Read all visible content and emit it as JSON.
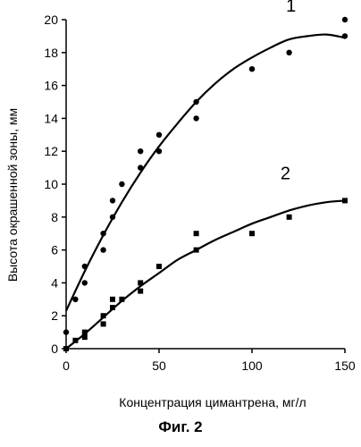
{
  "caption": "Фиг. 2",
  "chart_data": {
    "type": "scatter",
    "xlabel": "Концентрация цимантрена, мг/л",
    "ylabel": "Высота окрашенной зоны, мм",
    "xlim": [
      0,
      150
    ],
    "ylim": [
      0,
      20
    ],
    "x_ticks": [
      0,
      50,
      100,
      150
    ],
    "y_ticks": [
      0,
      2,
      4,
      6,
      8,
      10,
      12,
      14,
      16,
      18,
      20
    ],
    "grid": false,
    "series": [
      {
        "name": "1",
        "marker": "circle",
        "points": [
          [
            0,
            1
          ],
          [
            5,
            3
          ],
          [
            10,
            4
          ],
          [
            10,
            5
          ],
          [
            20,
            6
          ],
          [
            20,
            7
          ],
          [
            25,
            8
          ],
          [
            25,
            9
          ],
          [
            30,
            10
          ],
          [
            40,
            11
          ],
          [
            40,
            12
          ],
          [
            50,
            12
          ],
          [
            50,
            13
          ],
          [
            70,
            14
          ],
          [
            70,
            15
          ],
          [
            100,
            17
          ],
          [
            120,
            18
          ],
          [
            150,
            19
          ],
          [
            150,
            20
          ]
        ],
        "trend": [
          [
            0,
            2.3
          ],
          [
            10,
            4.7
          ],
          [
            20,
            6.9
          ],
          [
            30,
            8.9
          ],
          [
            40,
            10.7
          ],
          [
            50,
            12.3
          ],
          [
            60,
            13.7
          ],
          [
            70,
            15.0
          ],
          [
            80,
            16.1
          ],
          [
            90,
            17.0
          ],
          [
            100,
            17.7
          ],
          [
            110,
            18.3
          ],
          [
            120,
            18.8
          ],
          [
            130,
            19.0
          ],
          [
            140,
            19.1
          ],
          [
            150,
            18.9
          ]
        ]
      },
      {
        "name": "2",
        "marker": "square",
        "points": [
          [
            0,
            0
          ],
          [
            5,
            0.5
          ],
          [
            10,
            1
          ],
          [
            10,
            0.7
          ],
          [
            20,
            1.5
          ],
          [
            20,
            2
          ],
          [
            25,
            2.5
          ],
          [
            25,
            3
          ],
          [
            30,
            3
          ],
          [
            40,
            3.5
          ],
          [
            40,
            4
          ],
          [
            50,
            5
          ],
          [
            70,
            6
          ],
          [
            70,
            7
          ],
          [
            100,
            7
          ],
          [
            120,
            8
          ],
          [
            150,
            9
          ]
        ],
        "trend": [
          [
            0,
            0
          ],
          [
            10,
            0.9
          ],
          [
            20,
            1.9
          ],
          [
            30,
            2.9
          ],
          [
            40,
            3.8
          ],
          [
            50,
            4.6
          ],
          [
            60,
            5.4
          ],
          [
            70,
            6.0
          ],
          [
            80,
            6.6
          ],
          [
            90,
            7.1
          ],
          [
            100,
            7.6
          ],
          [
            110,
            8.0
          ],
          [
            120,
            8.4
          ],
          [
            130,
            8.7
          ],
          [
            140,
            8.9
          ],
          [
            150,
            9.0
          ]
        ]
      }
    ]
  }
}
